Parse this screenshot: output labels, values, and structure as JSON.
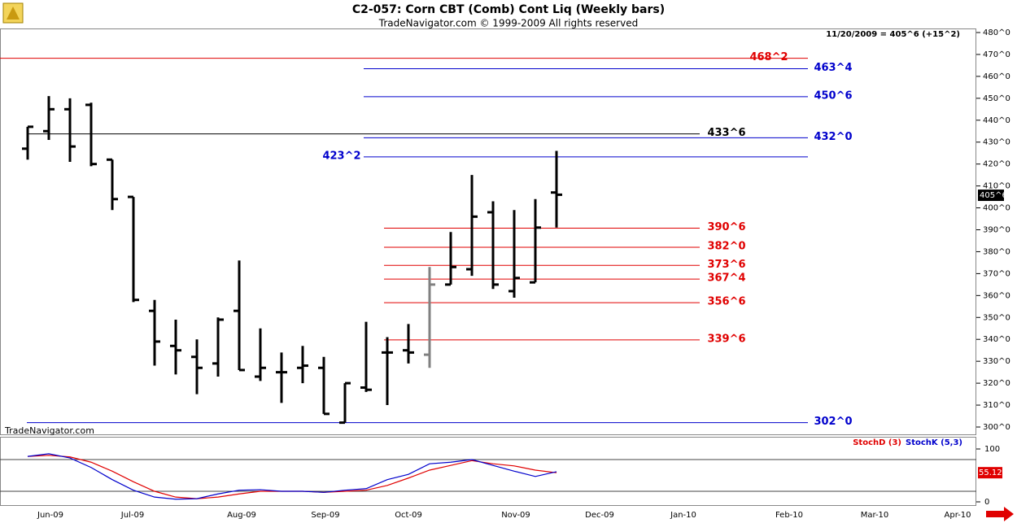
{
  "chart_data": [
    {
      "type": "ohlc",
      "title": "C2-057:  Corn CBT (Comb) Cont Liq  (Weekly bars)",
      "subtitle": "TradeNavigator.com © 1999-2009 All rights reserved",
      "watermark": "TradeNavigator.com",
      "header_note": "11/20/2009 = 405^6 (+15^2)",
      "last": {
        "value": 405.75,
        "label": "405^6"
      },
      "months": [
        "Jun-09",
        "Jul-09",
        "Aug-09",
        "Sep-09",
        "Oct-09",
        "Nov-09",
        "Dec-09",
        "Jan-10",
        "Feb-10",
        "Mar-10",
        "Apr-10"
      ],
      "open": [
        427,
        435,
        445,
        447,
        422,
        405,
        353,
        337,
        332,
        329,
        353,
        323,
        325,
        327,
        327,
        302,
        318,
        334,
        335,
        333,
        365,
        372,
        398,
        362,
        366,
        407
      ],
      "high": [
        437,
        451,
        450,
        448,
        422,
        405,
        358,
        349,
        340,
        350,
        376,
        345,
        334,
        337,
        332,
        320,
        348,
        341,
        347,
        373,
        389,
        415,
        403,
        399,
        404,
        426
      ],
      "low": [
        422,
        431,
        421,
        419,
        399,
        357,
        328,
        324,
        315,
        323,
        326,
        321,
        311,
        320,
        306,
        302,
        316,
        310,
        329,
        327,
        365,
        369,
        363,
        359,
        366,
        391
      ],
      "close": [
        437,
        445,
        428,
        420,
        404,
        358,
        339,
        335,
        327,
        349,
        326,
        327,
        325,
        328,
        306,
        320,
        317,
        334,
        334,
        365,
        373,
        396,
        365,
        368,
        391,
        406
      ],
      "colors": [
        "#000000",
        "#000000",
        "#000000",
        "#000000",
        "#000000",
        "#000000",
        "#000000",
        "#000000",
        "#000000",
        "#000000",
        "#000000",
        "#000000",
        "#000000",
        "#000000",
        "#000000",
        "#000000",
        "#000000",
        "#000000",
        "#000000",
        "#808080",
        "#000000",
        "#000000",
        "#000000",
        "#000000",
        "#000000",
        "#000000"
      ],
      "levels": [
        {
          "value": 468.25,
          "label": "468^2",
          "color": "#e00000"
        },
        {
          "value": 463.5,
          "label": "463^4",
          "color": "#0000cc"
        },
        {
          "value": 450.75,
          "label": "450^6",
          "color": "#0000cc"
        },
        {
          "value": 433.75,
          "label": "433^6",
          "color": "#000000"
        },
        {
          "value": 432,
          "label": "432^0",
          "color": "#0000cc"
        },
        {
          "value": 423.25,
          "label": "423^2",
          "color": "#0000cc"
        },
        {
          "value": 390.75,
          "label": "390^6",
          "color": "#e00000"
        },
        {
          "value": 382,
          "label": "382^0",
          "color": "#e00000"
        },
        {
          "value": 373.75,
          "label": "373^6",
          "color": "#e00000"
        },
        {
          "value": 367.5,
          "label": "367^4",
          "color": "#e00000"
        },
        {
          "value": 356.75,
          "label": "356^6",
          "color": "#e00000"
        },
        {
          "value": 339.75,
          "label": "339^6",
          "color": "#e00000"
        },
        {
          "value": 302,
          "label": "302^0",
          "color": "#0000cc"
        }
      ],
      "ylim": [
        300,
        480
      ],
      "yticks": [
        {
          "value": 300,
          "label": "300^0"
        },
        {
          "value": 310,
          "label": "310^0"
        },
        {
          "value": 320,
          "label": "320^0"
        },
        {
          "value": 330,
          "label": "330^0"
        },
        {
          "value": 340,
          "label": "340^0"
        },
        {
          "value": 350,
          "label": "350^0"
        },
        {
          "value": 360,
          "label": "360^0"
        },
        {
          "value": 370,
          "label": "370^0"
        },
        {
          "value": 380,
          "label": "380^0"
        },
        {
          "value": 390,
          "label": "390^0"
        },
        {
          "value": 400,
          "label": "400^0"
        },
        {
          "value": 410,
          "label": "410^0"
        },
        {
          "value": 420,
          "label": "420^0"
        },
        {
          "value": 430,
          "label": "430^0"
        },
        {
          "value": 440,
          "label": "440^0"
        },
        {
          "value": 450,
          "label": "450^0"
        },
        {
          "value": 460,
          "label": "460^0"
        },
        {
          "value": 470,
          "label": "470^0"
        },
        {
          "value": 480,
          "label": "480^0"
        }
      ]
    },
    {
      "type": "line",
      "series": [
        {
          "name": "StochD (3)",
          "color": "#e00000",
          "values": [
            86,
            88,
            85,
            75,
            58,
            38,
            20,
            9,
            6,
            9,
            15,
            20,
            20,
            20,
            18,
            20,
            22,
            31,
            45,
            60,
            69,
            78,
            72,
            68,
            60,
            55.12
          ]
        },
        {
          "name": "StochK (5,3)",
          "color": "#0000cc",
          "values": [
            86,
            91,
            83,
            65,
            42,
            22,
            9,
            5,
            6,
            15,
            22,
            23,
            20,
            20,
            18,
            22,
            25,
            42,
            52,
            72,
            75,
            80,
            69,
            58,
            48,
            57
          ]
        }
      ],
      "last_label": "55.12",
      "levels": [
        20,
        80
      ],
      "ylim": [
        0,
        100
      ],
      "yticks": [
        0,
        100
      ]
    }
  ]
}
